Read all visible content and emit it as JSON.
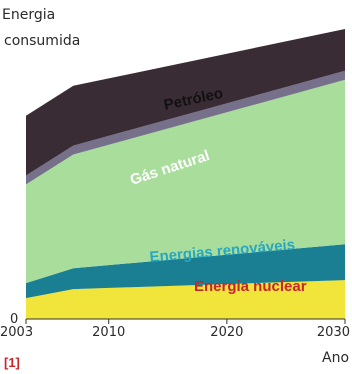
{
  "figure_ref": "[1]",
  "chart_data": {
    "type": "area",
    "stacked": true,
    "ylabel_line1": "Energia",
    "ylabel_line2": "consumida",
    "xlabel": "Ano",
    "y_zero_label": "0",
    "x": [
      2003,
      2007,
      2030
    ],
    "x_ticks": [
      "2003",
      "2010",
      "2020",
      "2030"
    ],
    "xlim": [
      2003,
      2030
    ],
    "ylim": [
      0,
      100
    ],
    "series": [
      {
        "name": "Energia nuclear",
        "color": "#f1e43a",
        "label_color": "#c8262a",
        "values": [
          7,
          10,
          13
        ]
      },
      {
        "name": "Energias renováveis",
        "color": "#1a7f93",
        "label_color": "#2aa7c0",
        "values": [
          5,
          7,
          12
        ]
      },
      {
        "name": "Gás natural",
        "color": "#a8dd9c",
        "label_color": "#ffffff",
        "values": [
          33,
          38,
          55
        ]
      },
      {
        "name": "Gás natural band",
        "color": "#77708b",
        "values": [
          3,
          3,
          3
        ]
      },
      {
        "name": "Petróleo",
        "color": "#3a2c34",
        "label_color": "#111111",
        "values": [
          20,
          20,
          14
        ]
      }
    ]
  }
}
